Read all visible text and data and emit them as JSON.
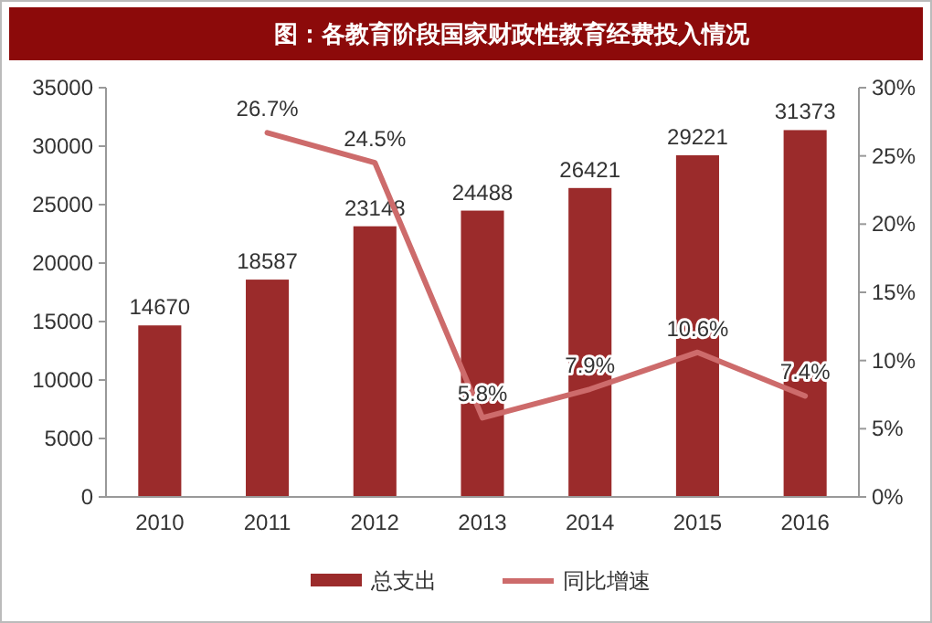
{
  "chart_data": {
    "type": "bar",
    "title": "图：各教育阶段国家财政性教育经费投入情况",
    "categories": [
      "2010",
      "2011",
      "2012",
      "2013",
      "2014",
      "2015",
      "2016"
    ],
    "series": [
      {
        "name": "总支出",
        "color": "#9b2b2b",
        "values": [
          14670,
          18587,
          23148,
          24488,
          26421,
          29221,
          31373
        ],
        "data_labels": true
      },
      {
        "name": "同比增速",
        "type": "line",
        "axis": "y2",
        "color": "#cd6b6b",
        "values": [
          null,
          26.7,
          24.5,
          5.8,
          7.9,
          10.6,
          7.4
        ],
        "value_labels": [
          null,
          "26.7%",
          "24.5%",
          "5.8%",
          "7.9%",
          "10.6%",
          "7.4%"
        ]
      }
    ],
    "ylim": [
      0,
      35000
    ],
    "yticks": [
      0,
      5000,
      10000,
      15000,
      20000,
      25000,
      30000,
      35000
    ],
    "y2lim": [
      0,
      30
    ],
    "y2ticks": [
      {
        "value": 0,
        "label": "0%"
      },
      {
        "value": 5,
        "label": "5%"
      },
      {
        "value": 10,
        "label": "10%"
      },
      {
        "value": 15,
        "label": "15%"
      },
      {
        "value": 20,
        "label": "20%"
      },
      {
        "value": 25,
        "label": "25%"
      },
      {
        "value": 30,
        "label": "30%"
      }
    ],
    "grid": false,
    "legend": "bottom"
  }
}
